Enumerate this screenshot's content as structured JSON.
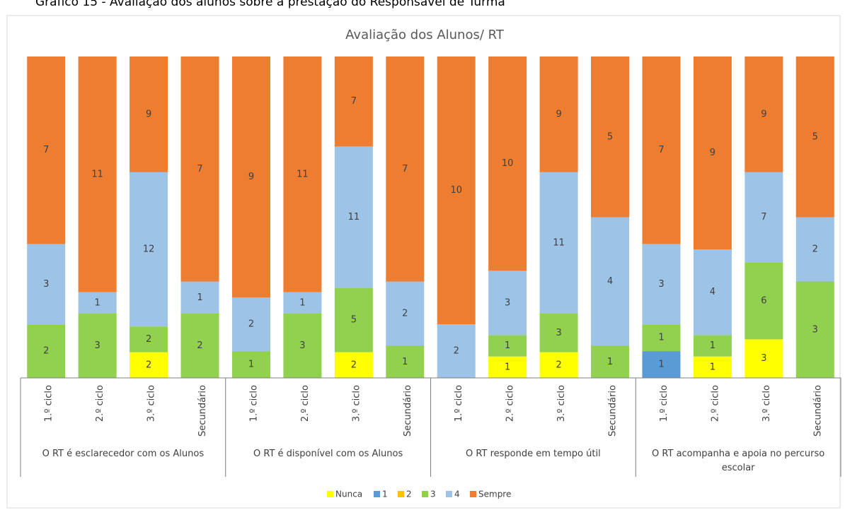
{
  "caption": "Gráfico 15 - Avaliação dos alunos sobre a prestação do Responsável de Turma",
  "chart_data": {
    "type": "stacked_percent_bar",
    "title": "Avaliação dos Alunos/ RT",
    "categories": [
      "1.º ciclo",
      "2.º ciclo",
      "3.º ciclo",
      "Secundário",
      "1.º ciclo",
      "2.º ciclo",
      "3.º ciclo",
      "Secundário",
      "1.º ciclo",
      "2.º ciclo",
      "3.º ciclo",
      "Secundário",
      "1.º ciclo",
      "2.º ciclo",
      "3.º ciclo",
      "Secundário"
    ],
    "groups": [
      "O RT é esclarecedor com os Alunos",
      "O RT é disponível com os Alunos",
      "O RT responde em tempo útil",
      "O RT acompanha e apoia no percurso escolar"
    ],
    "series": [
      {
        "name": "Nunca",
        "color": "#ffff00",
        "values": [
          0,
          0,
          2,
          0,
          0,
          0,
          2,
          0,
          0,
          1,
          2,
          0,
          0,
          1,
          3,
          0
        ]
      },
      {
        "name": "1",
        "color": "#5b9bd5",
        "values": [
          0,
          0,
          0,
          0,
          0,
          0,
          0,
          0,
          0,
          0,
          0,
          0,
          1,
          0,
          0,
          0
        ]
      },
      {
        "name": "2",
        "color": "#ffc000",
        "values": [
          0,
          0,
          0,
          0,
          0,
          0,
          0,
          0,
          0,
          0,
          0,
          0,
          0,
          0,
          0,
          0
        ]
      },
      {
        "name": "3",
        "color": "#92d050",
        "values": [
          2,
          3,
          2,
          2,
          1,
          3,
          5,
          1,
          0,
          1,
          3,
          1,
          1,
          1,
          6,
          3
        ]
      },
      {
        "name": "4",
        "color": "#9dc3e6",
        "values": [
          3,
          1,
          12,
          1,
          2,
          1,
          11,
          2,
          2,
          3,
          11,
          4,
          3,
          4,
          7,
          2
        ]
      },
      {
        "name": "Sempre",
        "color": "#ed7d31",
        "values": [
          7,
          11,
          9,
          7,
          9,
          11,
          7,
          7,
          10,
          10,
          9,
          5,
          7,
          9,
          9,
          5
        ]
      }
    ],
    "legend": "bottom"
  }
}
